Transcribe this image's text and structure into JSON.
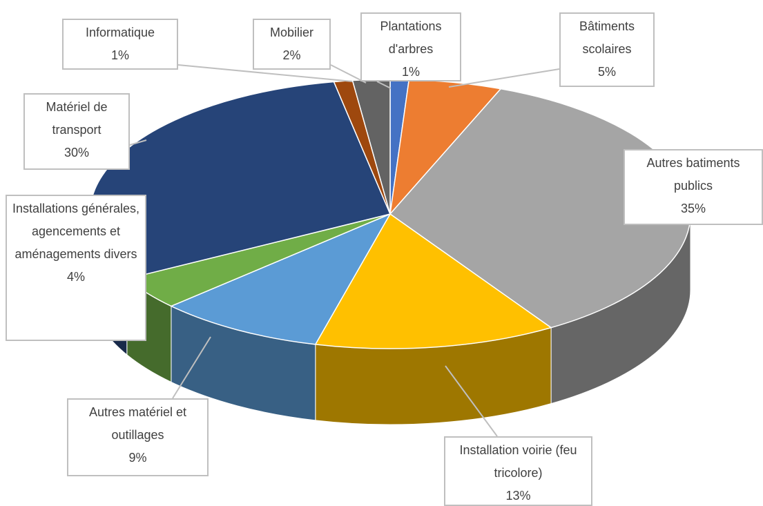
{
  "chart_data": {
    "type": "pie3d",
    "categories": [
      "Plantations d'arbres",
      "Bâtiments scolaires",
      "Autres batiments publics",
      "Installation voirie (feu tricolore)",
      "Autres matériel et outillages",
      "Installations générales, agencements et aménagements divers",
      "Matériel de transport",
      "Informatique",
      "Mobilier"
    ],
    "values": [
      1,
      5,
      35,
      13,
      9,
      4,
      30,
      1,
      2
    ],
    "value_labels": [
      "1%",
      "5%",
      "35%",
      "13%",
      "9%",
      "4%",
      "30%",
      "1%",
      "2%"
    ],
    "colors": [
      "#4472c4",
      "#ed7d31",
      "#a5a5a5",
      "#ffc000",
      "#5b9bd5",
      "#70ad47",
      "#264478",
      "#9e480e",
      "#636363"
    ]
  }
}
